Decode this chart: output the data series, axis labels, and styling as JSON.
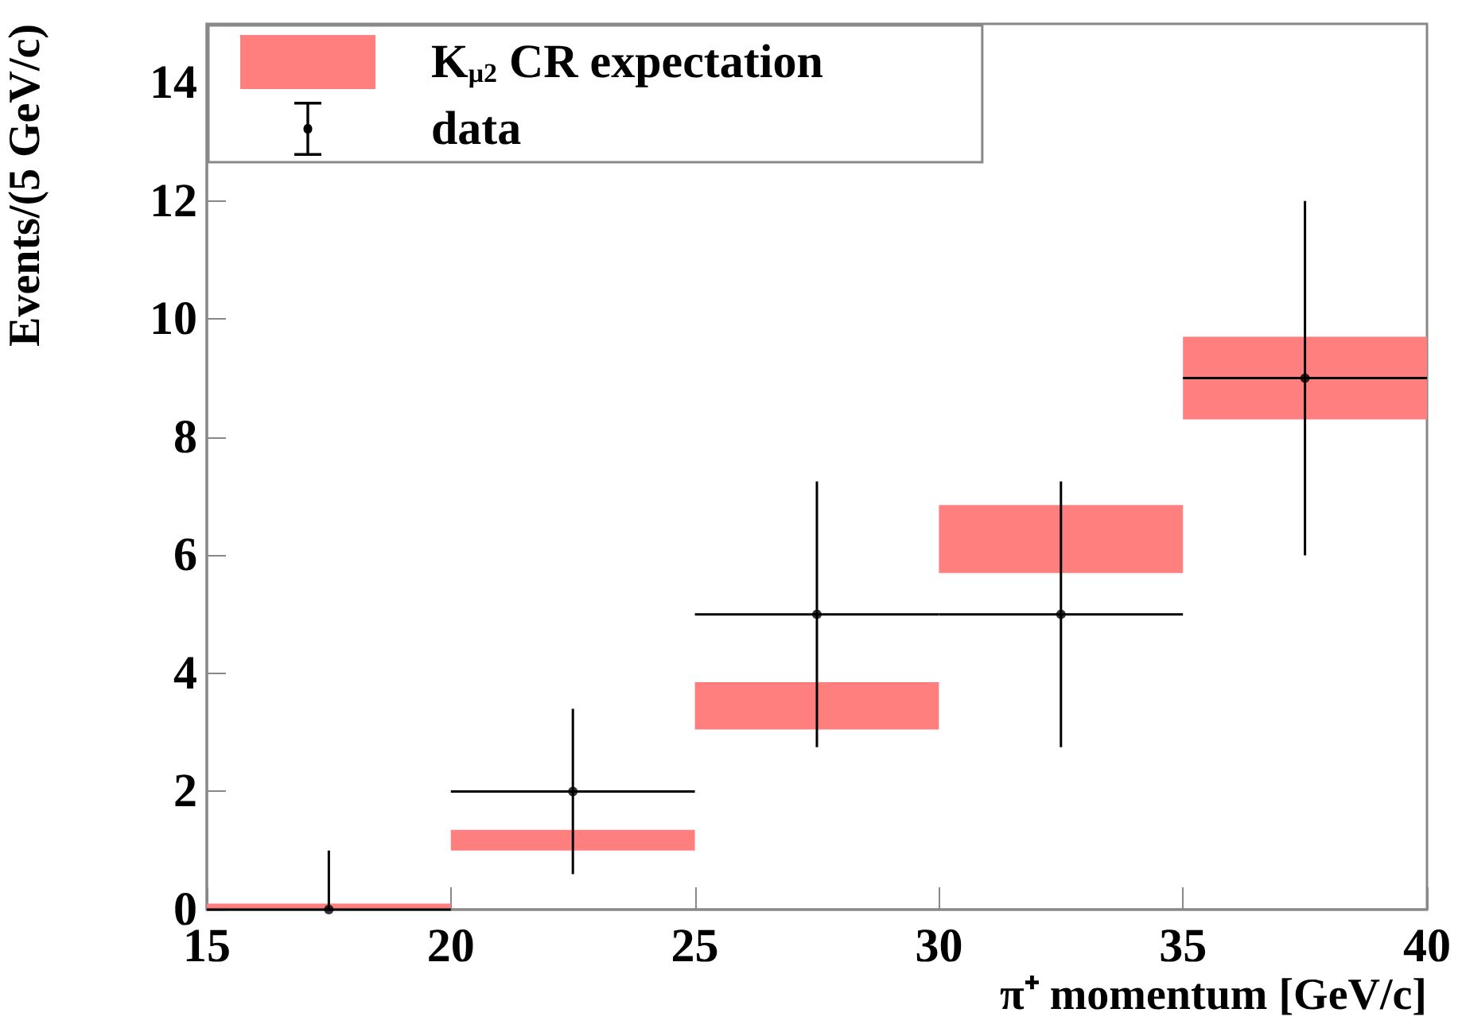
{
  "chart_data": {
    "type": "bar",
    "xlabel": "π⁺ momentum [GeV/c]",
    "ylabel": "Events/(5 GeV/c)",
    "xlim": [
      15,
      40
    ],
    "xticks": [
      15,
      20,
      25,
      30,
      35,
      40
    ],
    "ylim": [
      0,
      15
    ],
    "yticks": [
      0,
      2,
      4,
      6,
      8,
      10,
      12,
      14
    ],
    "grid": false,
    "legend": "top left",
    "series": [
      {
        "name": "K$_{μ2}$ CR expectation",
        "color": "#ff7f7f",
        "x": [
          17.5,
          22.5,
          27.5,
          32.5,
          37.5
        ],
        "base": [
          0,
          1.0,
          3.05,
          5.7,
          8.3
        ],
        "values": [
          0.1,
          0.35,
          0.8,
          1.15,
          1.4
        ]
      },
      {
        "name": "data",
        "type": "scatter",
        "color": "#000000",
        "marker": "circle",
        "x": [
          17.5,
          22.5,
          27.5,
          32.5,
          37.5
        ],
        "values": [
          0,
          2,
          5,
          5,
          9
        ],
        "errors": [
          [
            0,
            1
          ],
          [
            0.6,
            3.4
          ],
          [
            2.75,
            7.25
          ],
          [
            2.75,
            7.25
          ],
          [
            6,
            12
          ]
        ],
        "xerrors": [
          2.5,
          2.5,
          2.5,
          2.5,
          2.5
        ]
      }
    ]
  }
}
